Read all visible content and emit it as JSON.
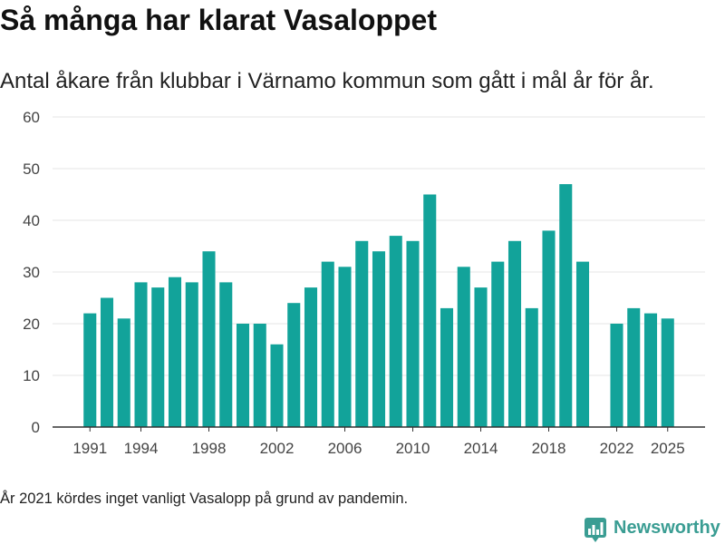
{
  "chart_data": {
    "type": "bar",
    "title": "Så många har klarat Vasaloppet",
    "subtitle": "Antal åkare från klubbar i Värnamo kommun som gått i mål år för år.",
    "footnote": "År 2021 kördes inget vanligt Vasalopp på grund av pandemin.",
    "xlabel": "",
    "ylabel": "",
    "x": [
      1991,
      1992,
      1993,
      1994,
      1995,
      1996,
      1997,
      1998,
      1999,
      2000,
      2001,
      2002,
      2003,
      2004,
      2005,
      2006,
      2007,
      2008,
      2009,
      2010,
      2011,
      2012,
      2013,
      2014,
      2015,
      2016,
      2017,
      2018,
      2019,
      2020,
      2022,
      2023,
      2024,
      2025
    ],
    "values": [
      22,
      25,
      21,
      28,
      27,
      29,
      28,
      34,
      28,
      20,
      20,
      16,
      24,
      27,
      32,
      31,
      36,
      34,
      37,
      36,
      45,
      23,
      31,
      27,
      32,
      36,
      23,
      38,
      47,
      32,
      20,
      23,
      22,
      21
    ],
    "x_ticks": [
      "1991",
      "1994",
      "1998",
      "2002",
      "2006",
      "2010",
      "2014",
      "2018",
      "2022",
      "2025"
    ],
    "y_ticks": [
      "0",
      "10",
      "20",
      "30",
      "40",
      "50",
      "60"
    ],
    "xlim": [
      1988.8,
      2027.2
    ],
    "ylim": [
      0,
      60
    ],
    "grid": true,
    "bar_color": "#12a39a"
  },
  "branding": {
    "logo_text": "Newsworthy",
    "logo_icon": "newsworthy-bar-chart-icon",
    "color": "#3a9d93"
  }
}
